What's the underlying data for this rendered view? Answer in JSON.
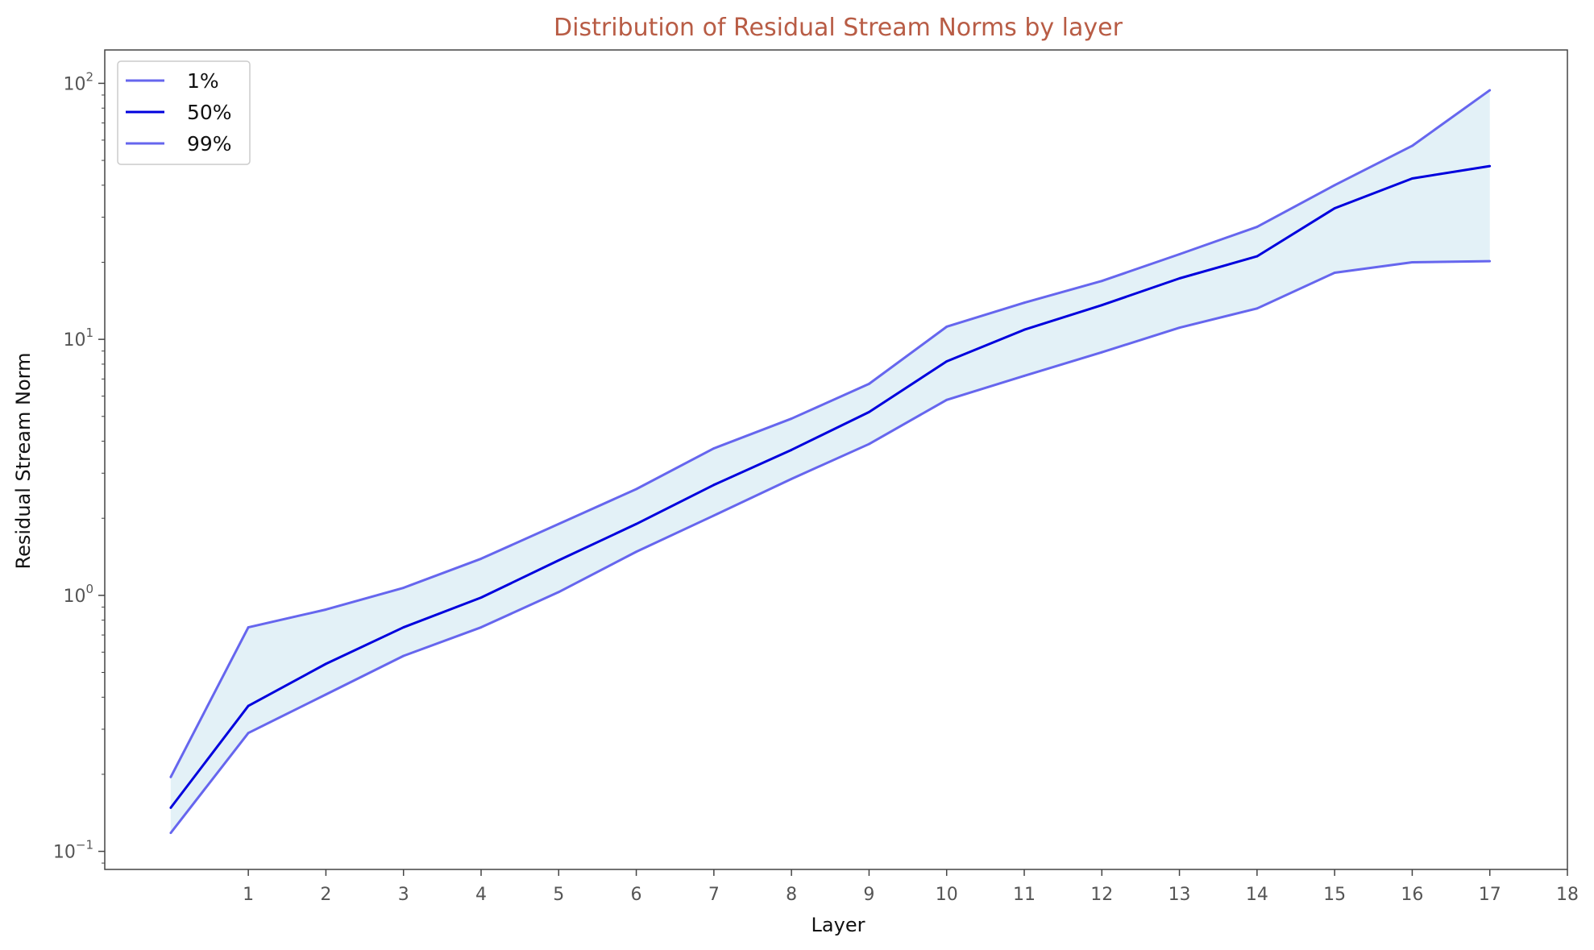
{
  "chart_data": {
    "type": "line",
    "title": "Distribution of Residual Stream Norms by layer",
    "xlabel": "Layer",
    "ylabel": "Residual Stream Norm",
    "yscale": "log",
    "xlim": [
      -0.85,
      18
    ],
    "ylim": [
      0.085,
      135
    ],
    "x_ticks": [
      1,
      2,
      3,
      4,
      5,
      6,
      7,
      8,
      9,
      10,
      11,
      12,
      13,
      14,
      15,
      16,
      17,
      18
    ],
    "y_ticks": [
      {
        "value": 0.1,
        "base": "10",
        "exp": "−1"
      },
      {
        "value": 1,
        "base": "10",
        "exp": "0"
      },
      {
        "value": 10,
        "base": "10",
        "exp": "1"
      },
      {
        "value": 100,
        "base": "10",
        "exp": "2"
      }
    ],
    "x": [
      0,
      1,
      2,
      3,
      4,
      5,
      6,
      7,
      8,
      9,
      10,
      11,
      12,
      13,
      14,
      15,
      16,
      17
    ],
    "series": [
      {
        "name": "1%",
        "color": "#6666ee",
        "values": [
          0.118,
          0.29,
          0.41,
          0.58,
          0.75,
          1.03,
          1.48,
          2.05,
          2.85,
          3.9,
          5.8,
          7.2,
          8.9,
          11.1,
          13.2,
          18.2,
          20.0,
          20.2
        ]
      },
      {
        "name": "50%",
        "color": "#0000dd",
        "values": [
          0.148,
          0.37,
          0.54,
          0.75,
          0.98,
          1.37,
          1.9,
          2.7,
          3.7,
          5.2,
          8.2,
          10.9,
          13.6,
          17.3,
          21.1,
          32.5,
          42.5,
          47.5
        ]
      },
      {
        "name": "99%",
        "color": "#6666ee",
        "values": [
          0.195,
          0.75,
          0.88,
          1.07,
          1.39,
          1.9,
          2.6,
          3.75,
          4.9,
          6.7,
          11.2,
          13.9,
          16.9,
          21.5,
          27.5,
          40.0,
          57.0,
          94.0
        ]
      }
    ],
    "band": {
      "lower": "1%",
      "upper": "99%",
      "color": "#e3f1f7"
    },
    "legend": {
      "position": "top-left",
      "entries": [
        "1%",
        "50%",
        "99%"
      ]
    },
    "grid": false
  }
}
